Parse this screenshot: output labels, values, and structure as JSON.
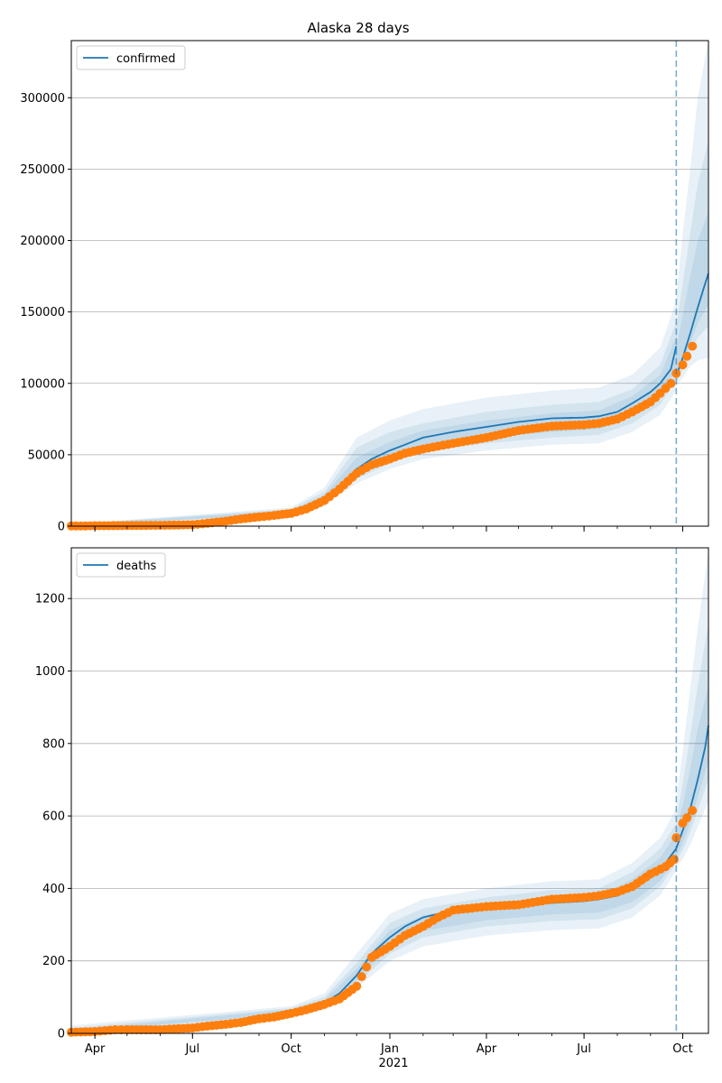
{
  "chart_data": [
    {
      "type": "line",
      "title": "Alaska 28 days",
      "legend": {
        "entries": [
          "confirmed"
        ],
        "placement": "top-left"
      },
      "grid": "horizontal",
      "xlim": [
        "2020-03-10",
        "2021-10-25"
      ],
      "ylim": [
        0,
        340000
      ],
      "yticks": [
        0,
        50000,
        100000,
        150000,
        200000,
        250000,
        300000
      ],
      "forecast_start": "2021-09-25",
      "model": {
        "x": [
          "2020-03-10",
          "2020-04-01",
          "2020-05-01",
          "2020-06-01",
          "2020-07-01",
          "2020-08-01",
          "2020-09-01",
          "2020-10-01",
          "2020-10-15",
          "2020-11-01",
          "2020-11-15",
          "2020-12-01",
          "2020-12-15",
          "2021-01-01",
          "2021-01-15",
          "2021-02-01",
          "2021-03-01",
          "2021-04-01",
          "2021-05-01",
          "2021-06-01",
          "2021-07-01",
          "2021-07-15",
          "2021-08-01",
          "2021-08-15",
          "2021-09-01",
          "2021-09-10",
          "2021-09-20",
          "2021-09-25"
        ],
        "y": [
          1000,
          1300,
          1600,
          1900,
          2500,
          4500,
          7500,
          10000,
          13000,
          19000,
          28000,
          40000,
          47000,
          53000,
          57000,
          62000,
          66000,
          69500,
          73000,
          75500,
          76000,
          77000,
          80000,
          86000,
          94000,
          100000,
          110000,
          126000
        ]
      },
      "forecast": {
        "x": [
          "2021-09-25",
          "2021-10-01",
          "2021-10-08",
          "2021-10-15",
          "2021-10-22",
          "2021-10-25"
        ],
        "y": [
          105000,
          118000,
          135000,
          153000,
          170000,
          177000
        ]
      },
      "bands": [
        {
          "x": [
            "2020-03-10",
            "2020-10-01",
            "2020-11-01",
            "2020-12-01",
            "2021-01-01",
            "2021-02-01",
            "2021-04-01",
            "2021-06-01",
            "2021-07-15",
            "2021-08-15",
            "2021-09-10",
            "2021-09-25"
          ],
          "lower": [
            0,
            7000,
            14000,
            30000,
            40000,
            47000,
            53000,
            57000,
            58000,
            66000,
            78000,
            95000
          ],
          "upper": [
            1500,
            13000,
            27000,
            62000,
            74000,
            82000,
            90000,
            95000,
            97000,
            106000,
            125000,
            158000
          ]
        },
        {
          "x": [
            "2020-03-10",
            "2020-10-01",
            "2020-11-01",
            "2020-12-01",
            "2021-01-01",
            "2021-02-01",
            "2021-04-01",
            "2021-06-01",
            "2021-07-15",
            "2021-08-15",
            "2021-09-10",
            "2021-09-25"
          ],
          "lower": [
            200,
            8000,
            16000,
            33000,
            44000,
            52000,
            58000,
            62000,
            64000,
            72000,
            85000,
            103000
          ],
          "upper": [
            1300,
            12000,
            24000,
            55000,
            66000,
            72000,
            80000,
            85000,
            87000,
            96000,
            113000,
            143000
          ]
        },
        {
          "x": [
            "2020-03-10",
            "2020-10-01",
            "2020-11-01",
            "2020-12-01",
            "2021-01-01",
            "2021-02-01",
            "2021-04-01",
            "2021-06-01",
            "2021-07-15",
            "2021-08-15",
            "2021-09-10",
            "2021-09-25"
          ],
          "lower": [
            500,
            8500,
            17000,
            36000,
            47000,
            55000,
            62000,
            66000,
            68000,
            77000,
            90000,
            110000
          ],
          "upper": [
            1200,
            11000,
            22000,
            48000,
            59000,
            67000,
            74000,
            79000,
            81000,
            91000,
            106000,
            133000
          ]
        },
        {
          "x": [
            "2021-09-25",
            "2021-10-01",
            "2021-10-08",
            "2021-10-15",
            "2021-10-25"
          ],
          "lower": [
            98000,
            104000,
            112000,
            116000,
            118000
          ],
          "upper": [
            160000,
            205000,
            250000,
            300000,
            340000
          ]
        },
        {
          "x": [
            "2021-09-25",
            "2021-10-01",
            "2021-10-08",
            "2021-10-15",
            "2021-10-25"
          ],
          "lower": [
            101000,
            110000,
            122000,
            132000,
            140000
          ],
          "upper": [
            140000,
            170000,
            205000,
            240000,
            270000
          ]
        },
        {
          "x": [
            "2021-09-25",
            "2021-10-01",
            "2021-10-08",
            "2021-10-15",
            "2021-10-25"
          ],
          "lower": [
            103000,
            114000,
            128000,
            142000,
            155000
          ],
          "upper": [
            125000,
            148000,
            175000,
            200000,
            220000
          ]
        }
      ],
      "observed": {
        "x": [
          "2020-03-10",
          "2020-04-01",
          "2020-05-01",
          "2020-06-01",
          "2020-07-01",
          "2020-07-15",
          "2020-08-01",
          "2020-08-15",
          "2020-09-01",
          "2020-09-15",
          "2020-10-01",
          "2020-10-15",
          "2020-11-01",
          "2020-11-15",
          "2020-12-01",
          "2020-12-15",
          "2021-01-01",
          "2021-01-15",
          "2021-02-01",
          "2021-02-15",
          "2021-03-01",
          "2021-04-01",
          "2021-05-01",
          "2021-06-01",
          "2021-07-01",
          "2021-07-15",
          "2021-08-01",
          "2021-08-15",
          "2021-09-01",
          "2021-09-10",
          "2021-09-20",
          "2021-09-25",
          "2021-10-01",
          "2021-10-05",
          "2021-10-10"
        ],
        "y": [
          100,
          300,
          400,
          600,
          1000,
          2000,
          3500,
          5000,
          6500,
          7500,
          9000,
          12000,
          18000,
          26000,
          37000,
          43000,
          47000,
          51000,
          54000,
          56000,
          58000,
          62000,
          67000,
          70000,
          71000,
          72000,
          75000,
          80000,
          87000,
          93000,
          100000,
          107000,
          113000,
          119000,
          126000
        ]
      },
      "x_tick_labels": [
        "Apr",
        "Jul",
        "Oct",
        "Jan",
        "Apr",
        "Jul",
        "Oct"
      ],
      "x_year_label": ""
    },
    {
      "type": "line",
      "title": "",
      "legend": {
        "entries": [
          "deaths"
        ],
        "placement": "top-left"
      },
      "grid": "horizontal",
      "xlim": [
        "2020-03-10",
        "2021-10-25"
      ],
      "ylim": [
        0,
        1340
      ],
      "yticks": [
        0,
        200,
        400,
        600,
        800,
        1000,
        1200
      ],
      "forecast_start": "2021-09-25",
      "model": {
        "x": [
          "2020-03-10",
          "2020-04-01",
          "2020-05-01",
          "2020-06-01",
          "2020-07-01",
          "2020-08-01",
          "2020-09-01",
          "2020-10-01",
          "2020-11-01",
          "2020-11-15",
          "2020-12-01",
          "2020-12-15",
          "2021-01-01",
          "2021-01-15",
          "2021-02-01",
          "2021-03-01",
          "2021-04-01",
          "2021-05-01",
          "2021-06-01",
          "2021-07-01",
          "2021-07-15",
          "2021-08-01",
          "2021-08-15",
          "2021-09-01",
          "2021-09-15",
          "2021-09-25"
        ],
        "y": [
          5,
          7,
          10,
          13,
          18,
          30,
          45,
          60,
          85,
          110,
          160,
          220,
          265,
          295,
          320,
          340,
          350,
          355,
          360,
          365,
          370,
          380,
          400,
          430,
          470,
          510
        ]
      },
      "forecast": {
        "x": [
          "2021-09-25",
          "2021-10-01",
          "2021-10-08",
          "2021-10-15",
          "2021-10-22",
          "2021-10-25"
        ],
        "y": [
          510,
          560,
          620,
          700,
          790,
          850
        ]
      },
      "bands": [
        {
          "x": [
            "2020-03-10",
            "2020-10-01",
            "2020-11-01",
            "2020-12-01",
            "2021-01-01",
            "2021-02-01",
            "2021-04-01",
            "2021-06-01",
            "2021-07-15",
            "2021-08-15",
            "2021-09-10",
            "2021-09-25"
          ],
          "lower": [
            0,
            45,
            65,
            125,
            200,
            240,
            270,
            285,
            290,
            320,
            380,
            450
          ],
          "upper": [
            22,
            75,
            110,
            220,
            330,
            370,
            400,
            420,
            425,
            470,
            540,
            620
          ]
        },
        {
          "x": [
            "2020-03-10",
            "2020-10-01",
            "2020-11-01",
            "2020-12-01",
            "2021-01-01",
            "2021-02-01",
            "2021-04-01",
            "2021-06-01",
            "2021-07-15",
            "2021-08-15",
            "2021-09-10",
            "2021-09-25"
          ],
          "lower": [
            2,
            50,
            72,
            138,
            220,
            265,
            295,
            310,
            315,
            345,
            405,
            470
          ],
          "upper": [
            15,
            70,
            100,
            195,
            305,
            345,
            375,
            395,
            400,
            445,
            510,
            580
          ]
        },
        {
          "x": [
            "2020-03-10",
            "2020-10-01",
            "2020-11-01",
            "2020-12-01",
            "2021-01-01",
            "2021-02-01",
            "2021-04-01",
            "2021-06-01",
            "2021-07-15",
            "2021-08-15",
            "2021-09-10",
            "2021-09-25"
          ],
          "lower": [
            3,
            54,
            78,
            148,
            238,
            283,
            312,
            328,
            333,
            362,
            420,
            485
          ],
          "upper": [
            10,
            66,
            93,
            178,
            285,
            325,
            355,
            375,
            380,
            425,
            485,
            550
          ]
        },
        {
          "x": [
            "2021-09-25",
            "2021-10-01",
            "2021-10-08",
            "2021-10-15",
            "2021-10-25"
          ],
          "lower": [
            460,
            480,
            520,
            570,
            640
          ],
          "upper": [
            640,
            780,
            950,
            1120,
            1330
          ]
        },
        {
          "x": [
            "2021-09-25",
            "2021-10-01",
            "2021-10-08",
            "2021-10-15",
            "2021-10-25"
          ],
          "lower": [
            475,
            505,
            555,
            615,
            700
          ],
          "upper": [
            590,
            690,
            820,
            960,
            1130
          ]
        },
        {
          "x": [
            "2021-09-25",
            "2021-10-01",
            "2021-10-08",
            "2021-10-15",
            "2021-10-25"
          ],
          "lower": [
            485,
            525,
            580,
            650,
            750
          ],
          "upper": [
            555,
            630,
            730,
            840,
            960
          ]
        }
      ],
      "observed": {
        "x": [
          "2020-03-10",
          "2020-04-01",
          "2020-04-20",
          "2020-05-01",
          "2020-06-01",
          "2020-07-01",
          "2020-07-15",
          "2020-08-01",
          "2020-08-15",
          "2020-09-01",
          "2020-09-15",
          "2020-10-01",
          "2020-10-15",
          "2020-11-01",
          "2020-11-15",
          "2020-12-01",
          "2020-12-15",
          "2021-01-01",
          "2021-01-15",
          "2021-02-01",
          "2021-02-15",
          "2021-03-01",
          "2021-04-01",
          "2021-05-01",
          "2021-06-01",
          "2021-07-01",
          "2021-07-15",
          "2021-08-01",
          "2021-08-15",
          "2021-09-01",
          "2021-09-15",
          "2021-09-23",
          "2021-09-25",
          "2021-10-01",
          "2021-10-05",
          "2021-10-10"
        ],
        "y": [
          3,
          5,
          10,
          10,
          10,
          15,
          20,
          25,
          30,
          40,
          45,
          55,
          65,
          80,
          95,
          130,
          210,
          240,
          270,
          295,
          320,
          340,
          350,
          355,
          370,
          375,
          380,
          390,
          405,
          440,
          460,
          480,
          540,
          580,
          595,
          615
        ]
      },
      "x_tick_labels": [
        "Apr",
        "Jul",
        "Oct",
        "Jan",
        "Apr",
        "Jul",
        "Oct"
      ],
      "x_year_label": "2021"
    }
  ]
}
